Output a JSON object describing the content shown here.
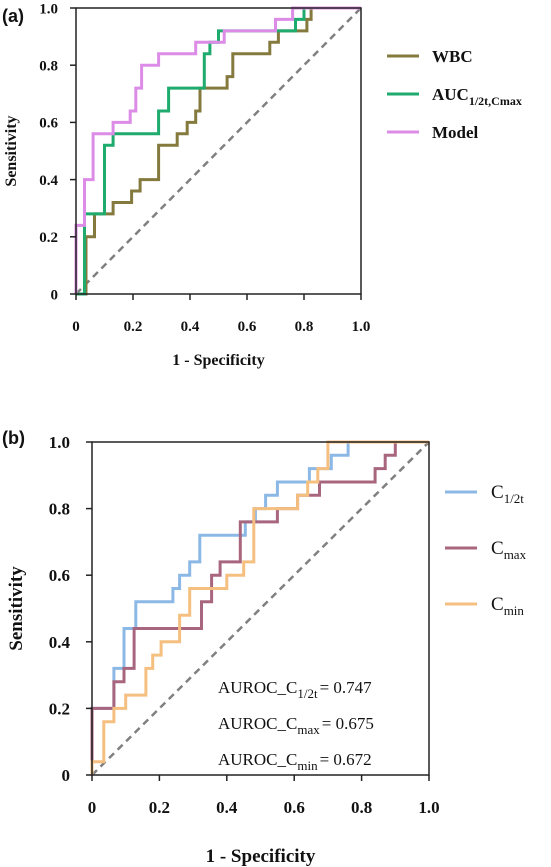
{
  "chart_data": [
    {
      "panel": "(a)",
      "type": "line",
      "xlabel": "1 - Specificity",
      "ylabel": "Sensitivity",
      "xlim": [
        0,
        1
      ],
      "ylim": [
        0,
        1
      ],
      "xticks": [
        "0",
        "0.2",
        "0.4",
        "0.6",
        "0.8",
        "1.0"
      ],
      "yticks": [
        "0",
        "0.2",
        "0.4",
        "0.6",
        "0.8",
        "1.0"
      ],
      "legend_position": "right",
      "grid": false,
      "reference_line": {
        "style": "dashed",
        "color": "#808080",
        "from": [
          0,
          0
        ],
        "to": [
          1,
          1
        ]
      },
      "series": [
        {
          "name": "WBC",
          "name_main": "WBC",
          "name_sub": "",
          "color": "#857A3E",
          "points": [
            [
              0,
              0
            ],
            [
              0.035,
              0
            ],
            [
              0.035,
              0.2
            ],
            [
              0.065,
              0.2
            ],
            [
              0.065,
              0.28
            ],
            [
              0.13,
              0.28
            ],
            [
              0.13,
              0.32
            ],
            [
              0.195,
              0.32
            ],
            [
              0.195,
              0.36
            ],
            [
              0.225,
              0.36
            ],
            [
              0.225,
              0.4
            ],
            [
              0.29,
              0.4
            ],
            [
              0.29,
              0.52
            ],
            [
              0.355,
              0.52
            ],
            [
              0.355,
              0.56
            ],
            [
              0.39,
              0.56
            ],
            [
              0.39,
              0.6
            ],
            [
              0.42,
              0.6
            ],
            [
              0.42,
              0.64
            ],
            [
              0.435,
              0.64
            ],
            [
              0.435,
              0.72
            ],
            [
              0.53,
              0.72
            ],
            [
              0.53,
              0.76
            ],
            [
              0.55,
              0.76
            ],
            [
              0.55,
              0.84
            ],
            [
              0.68,
              0.84
            ],
            [
              0.68,
              0.88
            ],
            [
              0.71,
              0.88
            ],
            [
              0.71,
              0.92
            ],
            [
              0.81,
              0.92
            ],
            [
              0.81,
              0.96
            ],
            [
              0.825,
              0.96
            ],
            [
              0.825,
              1.0
            ],
            [
              1.0,
              1.0
            ]
          ]
        },
        {
          "name": "AUC1/2t,Cmax",
          "name_main": "AUC",
          "name_sub": "1/2t,Cmax",
          "color": "#1FAA6E",
          "points": [
            [
              0,
              0
            ],
            [
              0.03,
              0
            ],
            [
              0.03,
              0.28
            ],
            [
              0.1,
              0.28
            ],
            [
              0.1,
              0.52
            ],
            [
              0.13,
              0.52
            ],
            [
              0.13,
              0.56
            ],
            [
              0.29,
              0.56
            ],
            [
              0.29,
              0.64
            ],
            [
              0.325,
              0.64
            ],
            [
              0.325,
              0.72
            ],
            [
              0.45,
              0.72
            ],
            [
              0.45,
              0.84
            ],
            [
              0.47,
              0.84
            ],
            [
              0.47,
              0.88
            ],
            [
              0.5,
              0.88
            ],
            [
              0.5,
              0.92
            ],
            [
              0.77,
              0.92
            ],
            [
              0.77,
              0.96
            ],
            [
              0.8,
              0.96
            ],
            [
              0.8,
              1.0
            ],
            [
              1.0,
              1.0
            ]
          ]
        },
        {
          "name": "Model",
          "name_main": "Model",
          "name_sub": "",
          "color": "#DC8CE6",
          "points": [
            [
              0,
              0
            ],
            [
              0,
              0.24
            ],
            [
              0.03,
              0.24
            ],
            [
              0.03,
              0.4
            ],
            [
              0.06,
              0.4
            ],
            [
              0.06,
              0.56
            ],
            [
              0.13,
              0.56
            ],
            [
              0.13,
              0.6
            ],
            [
              0.19,
              0.6
            ],
            [
              0.19,
              0.64
            ],
            [
              0.21,
              0.64
            ],
            [
              0.21,
              0.72
            ],
            [
              0.23,
              0.72
            ],
            [
              0.23,
              0.8
            ],
            [
              0.29,
              0.8
            ],
            [
              0.29,
              0.84
            ],
            [
              0.42,
              0.84
            ],
            [
              0.42,
              0.88
            ],
            [
              0.52,
              0.88
            ],
            [
              0.52,
              0.92
            ],
            [
              0.7,
              0.92
            ],
            [
              0.7,
              0.96
            ],
            [
              0.76,
              0.96
            ],
            [
              0.76,
              1.0
            ],
            [
              1.0,
              1.0
            ]
          ]
        }
      ]
    },
    {
      "panel": "(b)",
      "type": "line",
      "xlabel": "1 - Specificity",
      "ylabel": "Sensitivity",
      "xlim": [
        0,
        1
      ],
      "ylim": [
        0,
        1
      ],
      "xticks": [
        "0",
        "0.2",
        "0.4",
        "0.6",
        "0.8",
        "1.0"
      ],
      "yticks": [
        "0",
        "0.2",
        "0.4",
        "0.6",
        "0.8",
        "1.0"
      ],
      "legend_position": "right",
      "grid": false,
      "reference_line": {
        "style": "dashed",
        "color": "#808080",
        "from": [
          0,
          0
        ],
        "to": [
          1,
          1
        ]
      },
      "series": [
        {
          "name": "C1/2t",
          "name_main": "C",
          "name_sub": "1/2t",
          "color": "#8CB8E6",
          "points": [
            [
              0,
              0
            ],
            [
              0,
              0.2
            ],
            [
              0.065,
              0.2
            ],
            [
              0.065,
              0.32
            ],
            [
              0.095,
              0.32
            ],
            [
              0.095,
              0.44
            ],
            [
              0.13,
              0.44
            ],
            [
              0.13,
              0.52
            ],
            [
              0.24,
              0.52
            ],
            [
              0.24,
              0.56
            ],
            [
              0.26,
              0.56
            ],
            [
              0.26,
              0.6
            ],
            [
              0.29,
              0.6
            ],
            [
              0.29,
              0.64
            ],
            [
              0.32,
              0.64
            ],
            [
              0.32,
              0.72
            ],
            [
              0.455,
              0.72
            ],
            [
              0.455,
              0.76
            ],
            [
              0.485,
              0.76
            ],
            [
              0.485,
              0.8
            ],
            [
              0.515,
              0.8
            ],
            [
              0.515,
              0.84
            ],
            [
              0.55,
              0.84
            ],
            [
              0.55,
              0.88
            ],
            [
              0.645,
              0.88
            ],
            [
              0.645,
              0.92
            ],
            [
              0.71,
              0.92
            ],
            [
              0.71,
              0.96
            ],
            [
              0.76,
              0.96
            ],
            [
              0.76,
              1.0
            ],
            [
              1.0,
              1.0
            ]
          ]
        },
        {
          "name": "Cmax",
          "name_main": "C",
          "name_sub": "max",
          "color": "#A8667E",
          "points": [
            [
              0,
              0
            ],
            [
              0,
              0.2
            ],
            [
              0.065,
              0.2
            ],
            [
              0.065,
              0.28
            ],
            [
              0.095,
              0.28
            ],
            [
              0.095,
              0.32
            ],
            [
              0.125,
              0.32
            ],
            [
              0.125,
              0.44
            ],
            [
              0.325,
              0.44
            ],
            [
              0.325,
              0.52
            ],
            [
              0.355,
              0.52
            ],
            [
              0.355,
              0.6
            ],
            [
              0.38,
              0.6
            ],
            [
              0.38,
              0.64
            ],
            [
              0.44,
              0.64
            ],
            [
              0.44,
              0.76
            ],
            [
              0.55,
              0.76
            ],
            [
              0.55,
              0.8
            ],
            [
              0.61,
              0.8
            ],
            [
              0.61,
              0.84
            ],
            [
              0.675,
              0.84
            ],
            [
              0.675,
              0.88
            ],
            [
              0.84,
              0.88
            ],
            [
              0.84,
              0.92
            ],
            [
              0.87,
              0.92
            ],
            [
              0.87,
              0.96
            ],
            [
              0.9,
              0.96
            ],
            [
              0.9,
              1.0
            ],
            [
              1.0,
              1.0
            ]
          ]
        },
        {
          "name": "Cmin",
          "name_main": "C",
          "name_sub": "min",
          "color": "#F5BF80",
          "points": [
            [
              0,
              0
            ],
            [
              0,
              0.04
            ],
            [
              0.035,
              0.04
            ],
            [
              0.035,
              0.16
            ],
            [
              0.065,
              0.16
            ],
            [
              0.065,
              0.2
            ],
            [
              0.1,
              0.2
            ],
            [
              0.1,
              0.24
            ],
            [
              0.16,
              0.24
            ],
            [
              0.16,
              0.32
            ],
            [
              0.18,
              0.32
            ],
            [
              0.18,
              0.36
            ],
            [
              0.205,
              0.36
            ],
            [
              0.205,
              0.4
            ],
            [
              0.26,
              0.4
            ],
            [
              0.26,
              0.48
            ],
            [
              0.29,
              0.48
            ],
            [
              0.29,
              0.56
            ],
            [
              0.4,
              0.56
            ],
            [
              0.4,
              0.6
            ],
            [
              0.45,
              0.6
            ],
            [
              0.45,
              0.64
            ],
            [
              0.48,
              0.64
            ],
            [
              0.48,
              0.8
            ],
            [
              0.61,
              0.8
            ],
            [
              0.61,
              0.84
            ],
            [
              0.64,
              0.84
            ],
            [
              0.64,
              0.88
            ],
            [
              0.67,
              0.88
            ],
            [
              0.67,
              0.92
            ],
            [
              0.7,
              0.92
            ],
            [
              0.7,
              1.0
            ],
            [
              1.0,
              1.0
            ]
          ]
        }
      ],
      "annotations": [
        {
          "main": "AUROC_C",
          "sub": "1/2t",
          "value": "= 0.747"
        },
        {
          "main": "AUROC_C",
          "sub": "max",
          "value": "= 0.675"
        },
        {
          "main": "AUROC_C",
          "sub": "min",
          "value": "= 0.672"
        }
      ]
    }
  ]
}
